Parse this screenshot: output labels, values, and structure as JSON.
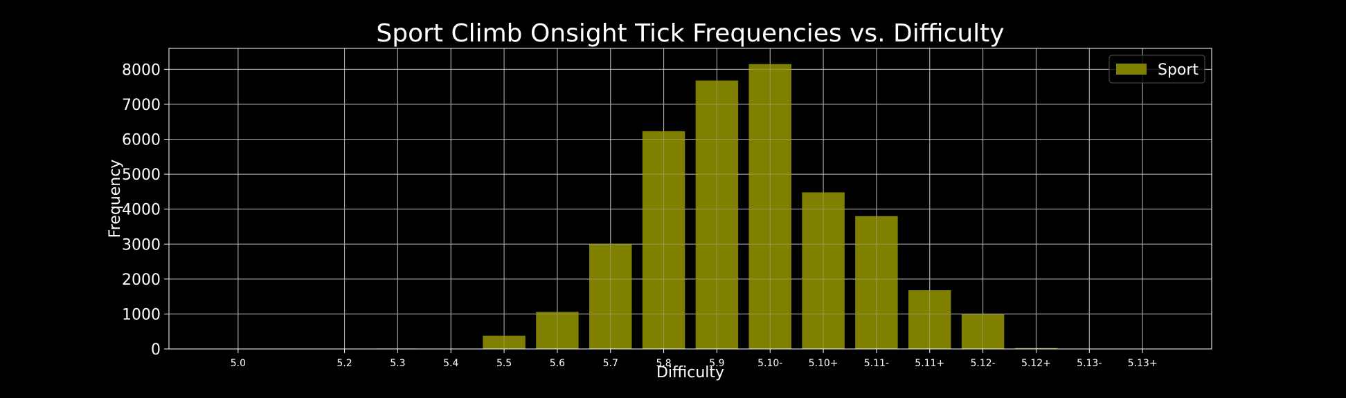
{
  "chart_data": {
    "type": "bar",
    "title": "Sport Climb Onsight Tick Frequencies vs. Difficulty",
    "xlabel": "Difficulty",
    "ylabel": "Frequency",
    "x_positions": [
      0,
      2,
      3,
      4,
      5,
      6,
      7,
      8,
      9,
      10,
      11,
      12,
      13,
      14,
      15,
      16,
      17
    ],
    "x_tick_positions": [
      0,
      2,
      3,
      4,
      5,
      6,
      7,
      8,
      9,
      10,
      11,
      12,
      13,
      14,
      15,
      16,
      17
    ],
    "x_tick_labels": [
      "5.0",
      "5.2",
      "5.3",
      "5.4",
      "5.5",
      "5.6",
      "5.7",
      "5.8",
      "5.9",
      "5.10-",
      "5.10+",
      "5.11-",
      "5.11+",
      "5.12-",
      "5.12+",
      "5.13-",
      "5.13+"
    ],
    "series": [
      {
        "name": "Sport",
        "values": [
          2,
          5,
          12,
          10,
          380,
          1060,
          3000,
          6230,
          7680,
          8150,
          4480,
          3800,
          1680,
          990,
          25,
          3,
          1
        ]
      }
    ],
    "xlim": [
      -1.3,
      18.3
    ],
    "ylim": [
      0,
      8600
    ],
    "y_ticks": [
      0,
      1000,
      2000,
      3000,
      4000,
      5000,
      6000,
      7000,
      8000
    ],
    "grid": true,
    "legend_position": "top-right",
    "colors": {
      "background": "#000000",
      "bar_fill": "#808000",
      "bar_edge": "#c8c850",
      "grid": "#b0b0b0",
      "text": "#ffffff"
    }
  }
}
